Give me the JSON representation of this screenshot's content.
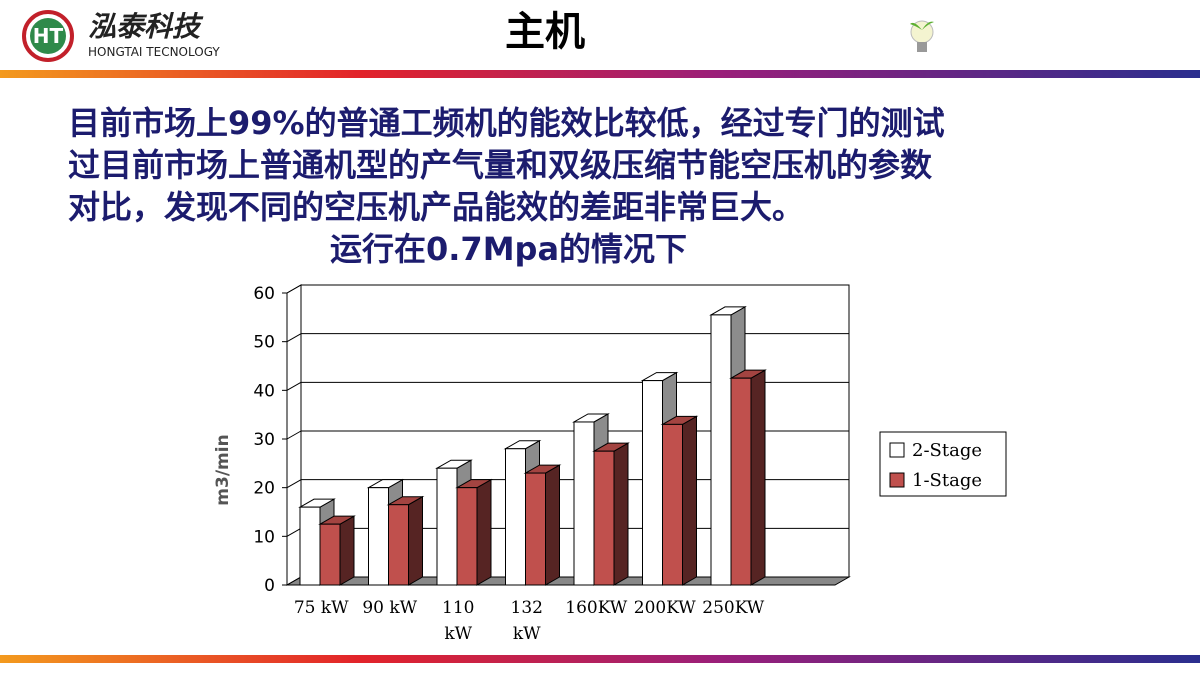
{
  "header": {
    "logo_text": "HT",
    "brand": "泓泰科技",
    "brand_en": "HONGTAI TECNOLOGY",
    "title": "主机"
  },
  "body": {
    "lines": [
      "目前市场上99%的普通工频机的能效比较低，经过专门的测试",
      "过目前市场上普通机型的产气量和双级压缩节能空压机的参数",
      "对比，发现不同的空压机产品能效的差距非常巨大。"
    ],
    "subtitle": "运行在0.7Mpa的情况下"
  },
  "chart_data": {
    "type": "bar3d",
    "y_label": "m3/min",
    "categories": [
      "75  kW",
      "90  kW",
      "110 kW",
      "132 kW",
      "160KW",
      "200KW",
      "250KW"
    ],
    "series": [
      {
        "name": "2-Stage",
        "color": "#ffffff",
        "values": [
          16,
          20,
          24,
          28,
          33.5,
          42,
          55.5
        ]
      },
      {
        "name": "1-Stage",
        "color": "#c0504d",
        "values": [
          12.5,
          16.5,
          20,
          23,
          27.5,
          33,
          42.5
        ]
      }
    ],
    "ylim": [
      0,
      60
    ],
    "yticks": [
      0,
      10,
      20,
      30,
      40,
      50,
      60
    ],
    "grid": true,
    "legend": "right"
  }
}
